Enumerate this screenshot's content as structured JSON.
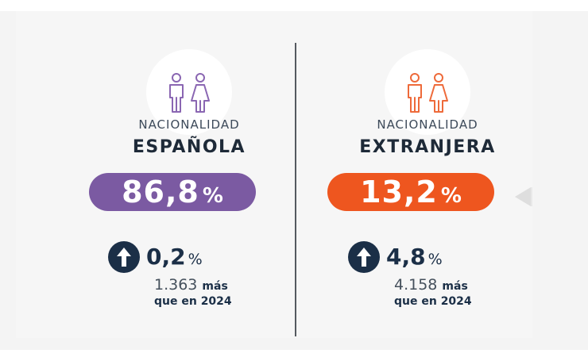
{
  "colors": {
    "spanish": "#7b5aa2",
    "foreign": "#ee561f",
    "dark": "#1b2f47"
  },
  "spanish": {
    "icon": "people-icon",
    "label_small": "NACIONALIDAD",
    "label_big": "ESPAÑOLA",
    "share_value": "86,8",
    "share_unit": "%",
    "change_icon": "arrow-up-icon",
    "change_value": "0,2",
    "change_unit": "%",
    "count": "1.363",
    "count_suffix": "más",
    "comparison": "que en 2024"
  },
  "foreign": {
    "icon": "people-icon",
    "label_small": "NACIONALIDAD",
    "label_big": "EXTRANJERA",
    "share_value": "13,2",
    "share_unit": "%",
    "change_icon": "arrow-up-icon",
    "change_value": "4,8",
    "change_unit": "%",
    "count": "4.158",
    "count_suffix": "más",
    "comparison": "que en 2024"
  }
}
